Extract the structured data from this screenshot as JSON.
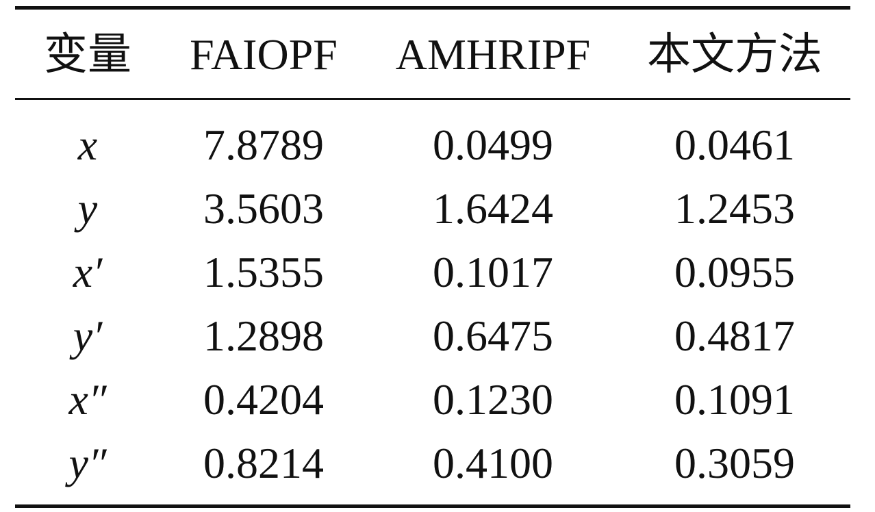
{
  "table": {
    "header": [
      "变量",
      "FAIOPF",
      "AMHRIPF",
      "本文方法"
    ],
    "rows": [
      [
        "x",
        "7.8789",
        "0.0499",
        "0.0461"
      ],
      [
        "y",
        "3.5603",
        "1.6424",
        "1.2453"
      ],
      [
        "x′",
        "1.5355",
        "0.1017",
        "0.0955"
      ],
      [
        "y′",
        "1.2898",
        "0.6475",
        "0.4817"
      ],
      [
        "x″",
        "0.4204",
        "0.1230",
        "0.1091"
      ],
      [
        "y″",
        "0.8214",
        "0.4100",
        "0.3059"
      ]
    ]
  }
}
